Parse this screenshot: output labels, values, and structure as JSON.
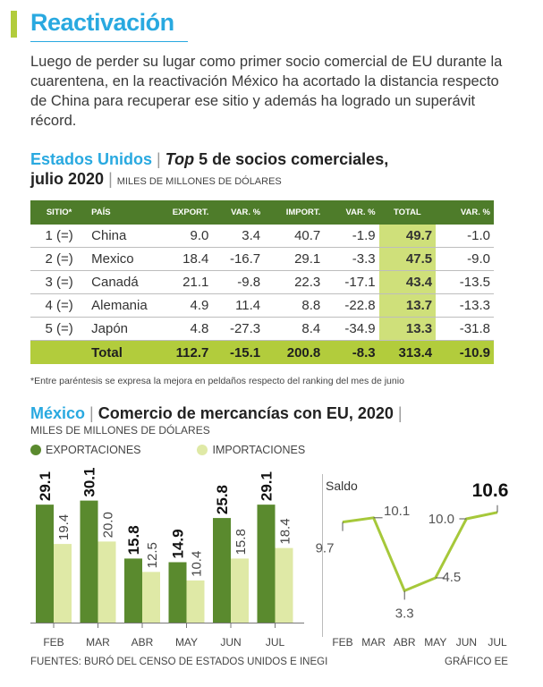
{
  "header": {
    "title": "Reactivación",
    "intro": "Luego de perder su lugar como primer socio comercial de EU durante la cuarentena, en la reactivación México ha acortado la distancia respecto de China para recuperar ese sitio y además ha logrado un superávit récord."
  },
  "table_section": {
    "country": "Estados Unidos",
    "title_italic": "Top",
    "title_rest": "5 de socios comerciales,",
    "title_line2": "julio 2020",
    "units": "MILES DE MILLONES DE DÓLARES",
    "columns": [
      "SITIO*",
      "PAÍS",
      "EXPORT.",
      "VAR. %",
      "IMPORT.",
      "VAR. %",
      "TOTAL",
      "VAR. %"
    ],
    "rows": [
      {
        "sitio": "1 (=)",
        "pais": "China",
        "export": "9.0",
        "var_exp": "3.4",
        "import": "40.7",
        "var_imp": "-1.9",
        "total": "49.7",
        "var_tot": "-1.0"
      },
      {
        "sitio": "2 (=)",
        "pais": "Mexico",
        "export": "18.4",
        "var_exp": "-16.7",
        "import": "29.1",
        "var_imp": "-3.3",
        "total": "47.5",
        "var_tot": "-9.0"
      },
      {
        "sitio": "3 (=)",
        "pais": "Canadá",
        "export": "21.1",
        "var_exp": "-9.8",
        "import": "22.3",
        "var_imp": "-17.1",
        "total": "43.4",
        "var_tot": "-13.5"
      },
      {
        "sitio": "4 (=)",
        "pais": "Alemania",
        "export": "4.9",
        "var_exp": "11.4",
        "import": "8.8",
        "var_imp": "-22.8",
        "total": "13.7",
        "var_tot": "-13.3"
      },
      {
        "sitio": "5 (=)",
        "pais": "Japón",
        "export": "4.8",
        "var_exp": "-27.3",
        "import": "8.4",
        "var_imp": "-34.9",
        "total": "13.3",
        "var_tot": "-31.8"
      }
    ],
    "total_row": {
      "label": "Total",
      "export": "112.7",
      "var_exp": "-15.1",
      "import": "200.8",
      "var_imp": "-8.3",
      "total": "313.4",
      "var_tot": "-10.9"
    },
    "note": "*Entre paréntesis se expresa la mejora en peldaños respecto del ranking del mes de junio"
  },
  "chart_section": {
    "country": "México",
    "title": "Comercio de mercancías con EU, 2020",
    "units": "MILES DE MILLONES DE DÓLARES",
    "legend_exports": "EXPORTACIONES",
    "legend_imports": "IMPORTACIONES"
  },
  "chart_data": [
    {
      "type": "bar",
      "categories": [
        "FEB",
        "MAR",
        "ABR",
        "MAY",
        "JUN",
        "JUL"
      ],
      "series": [
        {
          "name": "EXPORTACIONES",
          "values": [
            29.1,
            30.1,
            15.8,
            14.9,
            25.8,
            29.1
          ]
        },
        {
          "name": "IMPORTACIONES",
          "values": [
            19.4,
            20.0,
            12.5,
            10.4,
            15.8,
            18.4
          ]
        }
      ],
      "ylim": [
        0,
        32
      ]
    },
    {
      "type": "line",
      "title": "Saldo",
      "categories": [
        "FEB",
        "MAR",
        "ABR",
        "MAY",
        "JUN",
        "JUL"
      ],
      "values": [
        9.7,
        10.1,
        3.3,
        4.5,
        10.0,
        10.6
      ],
      "labels": [
        "9.7",
        "10.1",
        "3.3",
        "4.5",
        "10.0",
        "10.6"
      ],
      "ylim": [
        3,
        11
      ]
    }
  ],
  "footer": {
    "source": "FUENTES: BURÓ DEL CENSO DE ESTADOS UNIDOS E INEGI",
    "credit": "GRÁFICO EE"
  },
  "colors": {
    "accent_blue": "#29a9e0",
    "export_green": "#5a8a2e",
    "import_green": "#dfe9a6",
    "line_green": "#a6c83a",
    "header_green": "#4e7c2a",
    "total_green": "#b2cc3c"
  }
}
